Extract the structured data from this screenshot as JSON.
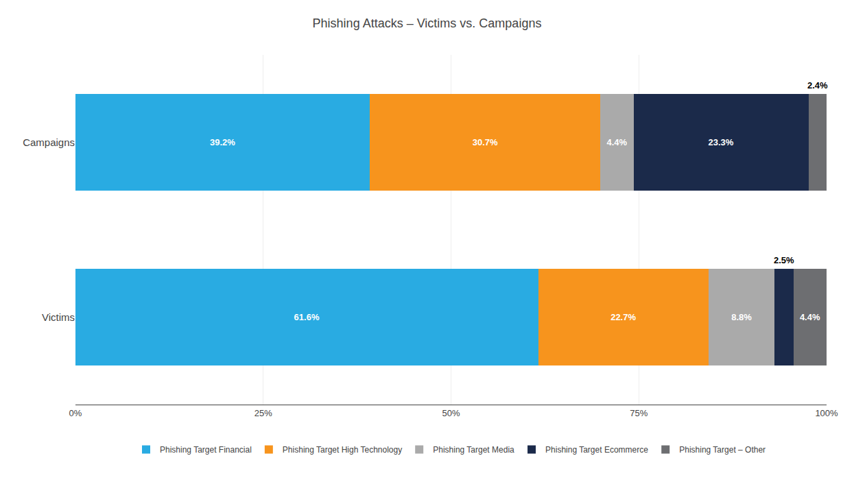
{
  "chart_data": {
    "type": "bar",
    "orientation": "horizontal",
    "stacked": true,
    "title": "Phishing Attacks – Victims vs. Campaigns",
    "categories": [
      "Campaigns",
      "Victims"
    ],
    "series": [
      {
        "name": "Phishing Target Financial",
        "color": "#29ABE2",
        "values": [
          39.2,
          61.6
        ],
        "value_labels": [
          "39.2%",
          "61.6%"
        ]
      },
      {
        "name": "Phishing Target High Technology",
        "color": "#F7941D",
        "values": [
          30.7,
          22.7
        ],
        "value_labels": [
          "30.7%",
          "22.7%"
        ]
      },
      {
        "name": "Phishing Target Media",
        "color": "#AAAAAA",
        "values": [
          4.4,
          8.8
        ],
        "value_labels": [
          "4.4%",
          "8.8%"
        ]
      },
      {
        "name": "Phishing Target Ecommerce",
        "color": "#1B2A4A",
        "values": [
          23.3,
          2.5
        ],
        "value_labels": [
          "23.3%",
          "2.5%"
        ]
      },
      {
        "name": "Phishing Target – Other",
        "color": "#6D6E71",
        "values": [
          2.4,
          4.4
        ],
        "value_labels": [
          "2.4%",
          "4.4%"
        ]
      }
    ],
    "xlim": [
      0,
      100
    ],
    "xticks": [
      {
        "value": 0,
        "label": "0%"
      },
      {
        "value": 25,
        "label": "25%"
      },
      {
        "value": 50,
        "label": "50%"
      },
      {
        "value": 75,
        "label": "75%"
      },
      {
        "value": 100,
        "label": "100%"
      }
    ],
    "grid": true,
    "legend": "bottom",
    "data_labels": true
  }
}
